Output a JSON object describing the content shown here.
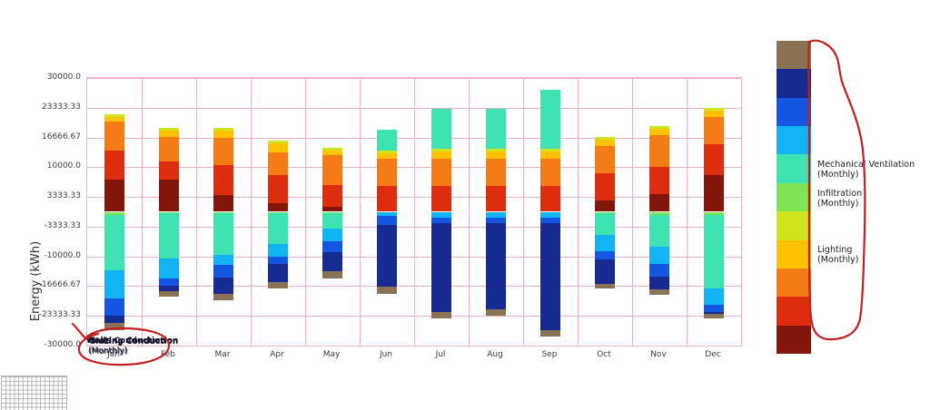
{
  "chart_data": {
    "type": "bar",
    "stacked": true,
    "title": "",
    "xlabel": "",
    "ylabel": "Energy (kWh)",
    "ylim": [
      -30000,
      30000
    ],
    "grid": true,
    "gridline_color": "#efb0c5",
    "legend_position": "right-colorbar",
    "yticks": [
      30000.0,
      23333.33,
      16666.67,
      10000.0,
      3333.33,
      -3333.33,
      -10000.0,
      -16666.67,
      -23333.33,
      -30000.0
    ],
    "ytick_labels": [
      "30000.0",
      "23333.33",
      "16666.67",
      "10000.0",
      "3333.33",
      "-3333.33",
      "-10000.0",
      "-16666.67",
      "-23333.33",
      "-30000.0"
    ],
    "categories": [
      "Jan",
      "Feb",
      "Mar",
      "Apr",
      "May",
      "Jun",
      "Jul",
      "Aug",
      "Sep",
      "Oct",
      "Nov",
      "Dec"
    ],
    "series": [
      {
        "name": "brown-band",
        "color": "#8a7355",
        "label": null,
        "values": [
          -1600,
          -1300,
          -1400,
          -1400,
          -1500,
          -1600,
          -1400,
          -1500,
          -1500,
          -1000,
          -1400,
          -1000
        ]
      },
      {
        "name": "navy-band",
        "color": "#172a91",
        "label": null,
        "values": [
          -1600,
          -1200,
          -3700,
          -4100,
          -4400,
          -13900,
          -20000,
          -19300,
          -24000,
          -5500,
          -2700,
          -400
        ]
      },
      {
        "name": "blue-band",
        "color": "#1456e2",
        "label": null,
        "values": [
          -3900,
          -1600,
          -2800,
          -1700,
          -2400,
          -1900,
          -1100,
          -1100,
          -1100,
          -1700,
          -3000,
          -1600
        ]
      },
      {
        "name": "cyan-band",
        "color": "#12b3f2",
        "label": null,
        "values": [
          -6300,
          -4400,
          -2300,
          -2800,
          -2800,
          -1000,
          -1400,
          -1400,
          -1400,
          -3800,
          -3700,
          -3700
        ]
      },
      {
        "name": "turquoise-band",
        "color": "#3ee2b2",
        "label": "Mechanical Ventilation\n(Monthly)",
        "values": [
          -12300,
          -10100,
          -9200,
          -6800,
          -3400,
          4700,
          8800,
          8800,
          13200,
          -4700,
          -7100,
          -16300
        ]
      },
      {
        "name": "green-band",
        "color": "#7fe552",
        "label": "Infiltration\n(Monthly)",
        "values": [
          -800,
          -400,
          -400,
          -400,
          -400,
          0,
          0,
          0,
          0,
          -400,
          -800,
          -800
        ]
      },
      {
        "name": "chartreuse-band",
        "color": "#d0e41e",
        "label": null,
        "values": [
          600,
          600,
          600,
          600,
          600,
          600,
          600,
          600,
          600,
          600,
          600,
          600
        ]
      },
      {
        "name": "amber-band",
        "color": "#fec103",
        "label": "Lighting\n(Monthly)",
        "values": [
          1000,
          1400,
          1800,
          1900,
          1000,
          1400,
          1800,
          1800,
          1800,
          1500,
          1400,
          1500
        ]
      },
      {
        "name": "orange-band",
        "color": "#f47b15",
        "label": null,
        "values": [
          6500,
          5500,
          6100,
          5100,
          6700,
          6100,
          6100,
          6100,
          6100,
          6100,
          7100,
          6100
        ]
      },
      {
        "name": "red-band",
        "color": "#dd2d0e",
        "label": null,
        "values": [
          6500,
          4100,
          6700,
          6300,
          4900,
          5700,
          5700,
          5700,
          5700,
          6100,
          6100,
          6900
        ]
      },
      {
        "name": "maroon-band",
        "color": "#83150b",
        "label": null,
        "values": [
          7200,
          7200,
          3700,
          2000,
          1100,
          0,
          0,
          0,
          0,
          2500,
          4000,
          8200
        ]
      }
    ]
  },
  "annotations": {
    "color": "#c41f1f",
    "circled_text": {
      "overlapping_lines": [
        "Heating Conduction",
        "Glazing Conduction",
        "Walls Conduction"
      ],
      "suffix": "(Monthly)"
    }
  }
}
